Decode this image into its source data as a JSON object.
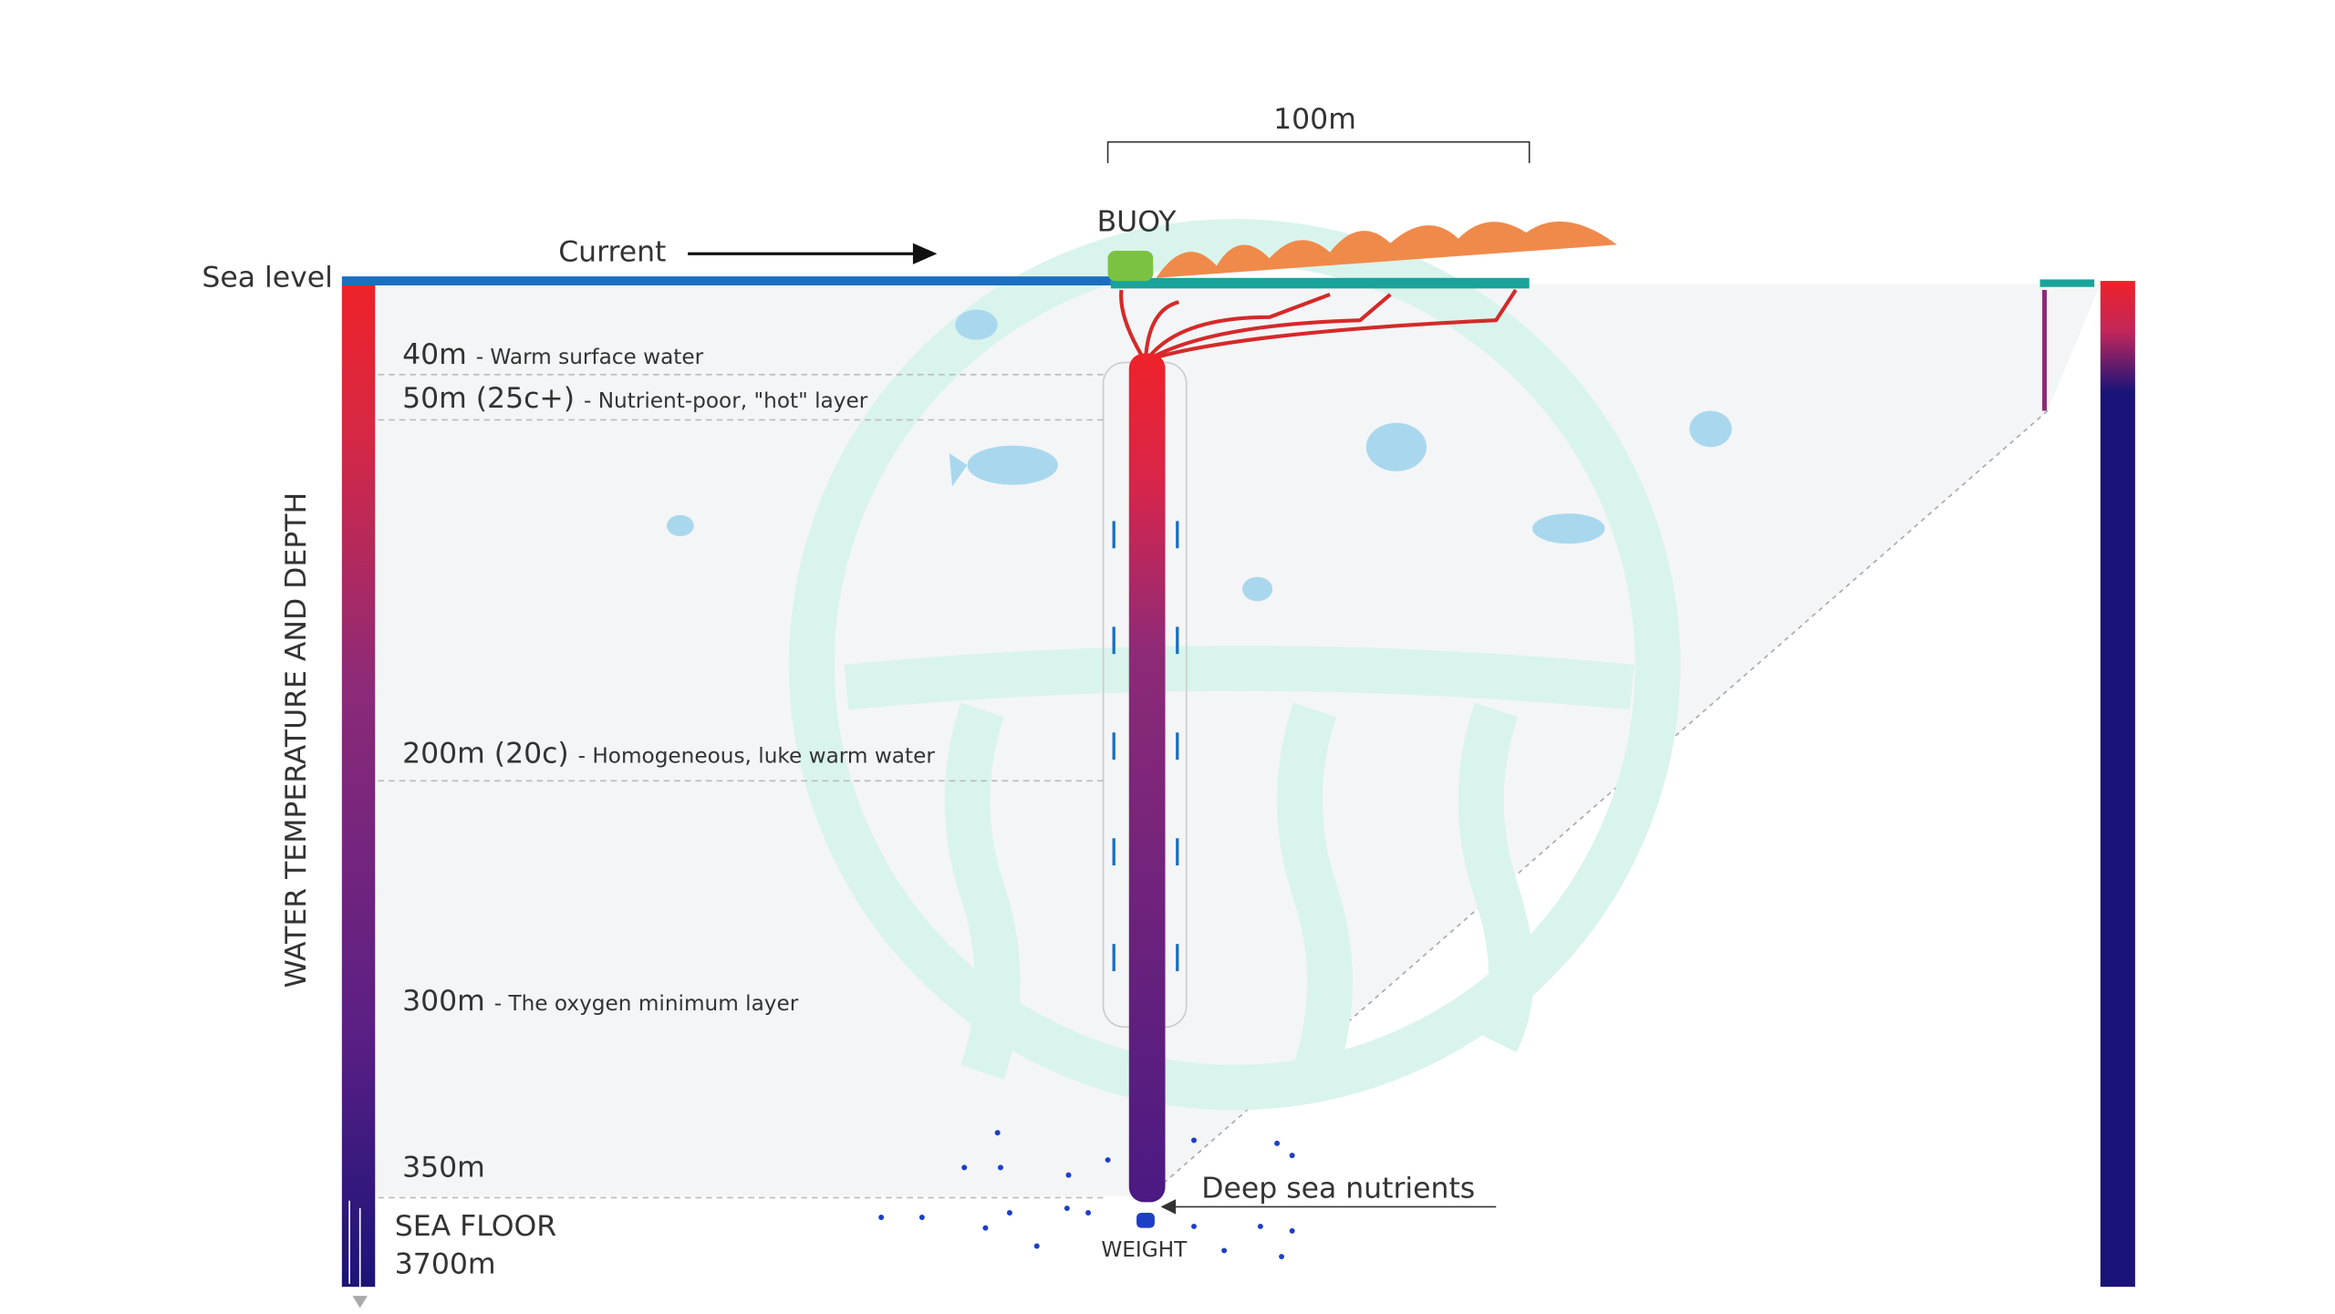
{
  "labels": {
    "width": "100m",
    "buoy": "BUOY",
    "current": "Current",
    "sea_level": "Sea level",
    "axis_title": "WATER TEMPERATURE AND DEPTH",
    "deep_nutrients": "Deep sea nutrients",
    "weight": "WEIGHT",
    "sea_floor": {
      "title": "SEA FLOOR",
      "depth": "3700m"
    }
  },
  "depth_layers": [
    {
      "depth": "40m",
      "description": "- Warm surface water"
    },
    {
      "depth": "50m (25c+)",
      "description": "- Nutrient-poor, \"hot\" layer"
    },
    {
      "depth": "200m (20c)",
      "description": "- Homogeneous, luke warm water"
    },
    {
      "depth": "300m",
      "description": "- The oxygen minimum layer"
    },
    {
      "depth": "350m"
    }
  ]
}
